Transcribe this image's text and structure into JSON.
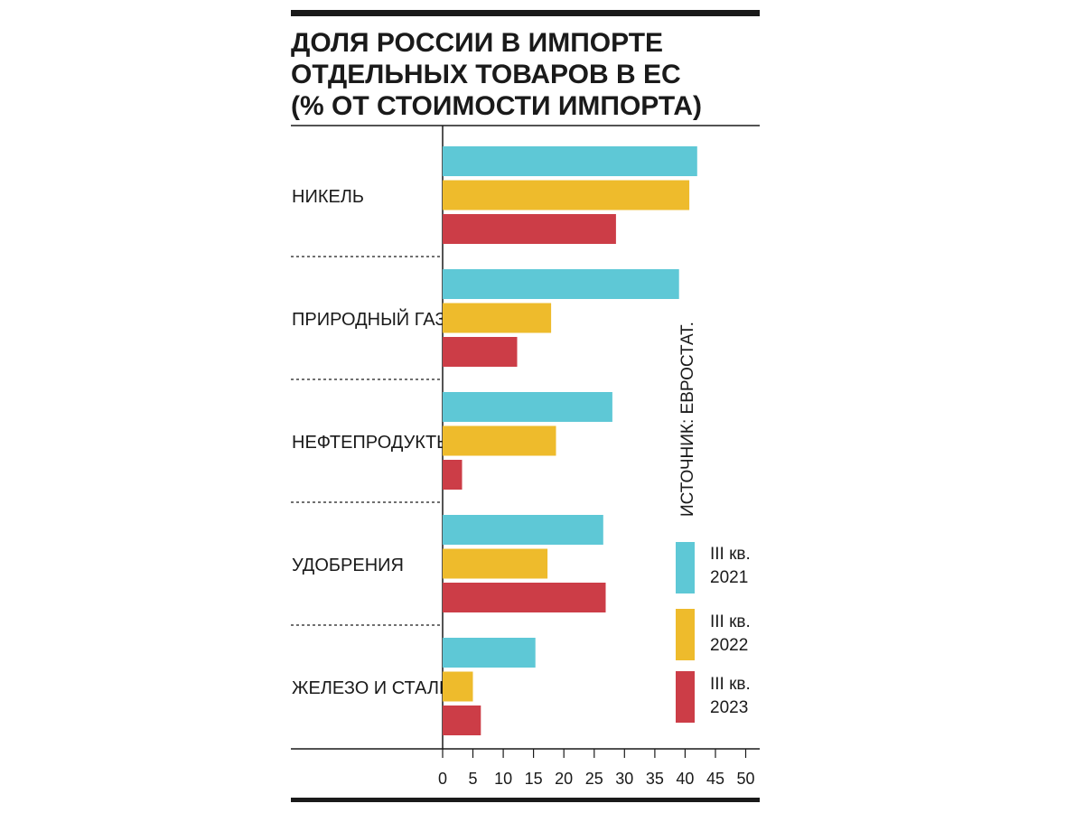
{
  "chart_data": {
    "type": "bar",
    "orientation": "horizontal",
    "title_lines": [
      "ДОЛЯ РОССИИ В ИМПОРТЕ",
      "ОТДЕЛЬНЫХ ТОВАРОВ В ЕС",
      "(% ОТ СТОИМОСТИ ИМПОРТА)"
    ],
    "categories": [
      "НИКЕЛЬ",
      "ПРИРОДНЫЙ ГАЗ",
      "НЕФТЕПРОДУКТЫ",
      "УДОБРЕНИЯ",
      "ЖЕЛЕЗО И СТАЛЬ"
    ],
    "series": [
      {
        "name": "III кв. 2021",
        "legend_line1": "III кв.",
        "legend_line2": "2021",
        "color": "#5ec8d6",
        "values": [
          42,
          39,
          28,
          26.5,
          15.3
        ]
      },
      {
        "name": "III кв. 2022",
        "legend_line1": "III кв.",
        "legend_line2": "2022",
        "color": "#eebb2c",
        "values": [
          40.7,
          17.9,
          18.7,
          17.3,
          5
        ]
      },
      {
        "name": "III кв. 2023",
        "legend_line1": "III кв.",
        "legend_line2": "2023",
        "color": "#cc3d47",
        "values": [
          28.6,
          12.3,
          3.2,
          26.9,
          6.3
        ]
      }
    ],
    "xlim": [
      0,
      50
    ],
    "xticks": [
      "0",
      "5",
      "10",
      "15",
      "20",
      "25",
      "30",
      "35",
      "40",
      "45",
      "50"
    ],
    "source": "ИСТОЧНИК: ЕВРОСТАТ.",
    "legend_position": "right"
  }
}
